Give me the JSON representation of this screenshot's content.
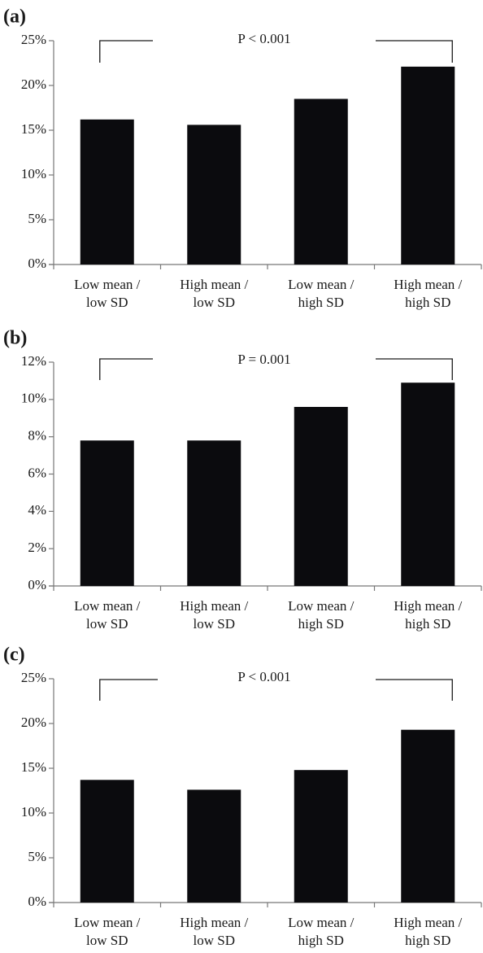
{
  "chart_data": [
    {
      "type": "bar",
      "panel_label": "(a)",
      "categories": [
        "Low mean / low SD",
        "High mean / low SD",
        "Low mean / high SD",
        "High mean / high SD"
      ],
      "category_lines": [
        [
          "Low mean /",
          "low SD"
        ],
        [
          "High mean /",
          "low SD"
        ],
        [
          "Low mean /",
          "high SD"
        ],
        [
          "High mean /",
          "high SD"
        ]
      ],
      "values": [
        0.162,
        0.156,
        0.185,
        0.221
      ],
      "ylim": [
        0,
        0.25
      ],
      "yticks": [
        0,
        0.05,
        0.1,
        0.15,
        0.2,
        0.25
      ],
      "ytick_labels": [
        "0%",
        "5%",
        "10%",
        "15%",
        "20%",
        "25%"
      ],
      "annotation": "P < 0.001",
      "bar_color": "#0b0b0e",
      "grid": false
    },
    {
      "type": "bar",
      "panel_label": "(b)",
      "categories": [
        "Low mean / low SD",
        "High mean / low SD",
        "Low mean / high SD",
        "High mean / high SD"
      ],
      "category_lines": [
        [
          "Low mean /",
          "low SD"
        ],
        [
          "High mean /",
          "low SD"
        ],
        [
          "Low mean /",
          "high SD"
        ],
        [
          "High mean /",
          "high SD"
        ]
      ],
      "values": [
        0.078,
        0.078,
        0.096,
        0.109
      ],
      "ylim": [
        0,
        0.12
      ],
      "yticks": [
        0,
        0.02,
        0.04,
        0.06,
        0.08,
        0.1,
        0.12
      ],
      "ytick_labels": [
        "0%",
        "2%",
        "4%",
        "6%",
        "8%",
        "10%",
        "12%"
      ],
      "annotation": "P = 0.001",
      "bar_color": "#0b0b0e",
      "grid": false
    },
    {
      "type": "bar",
      "panel_label": "(c)",
      "categories": [
        "Low mean / low SD",
        "High mean / low SD",
        "Low mean / high SD",
        "High mean / high SD"
      ],
      "category_lines": [
        [
          "Low mean /",
          "low SD"
        ],
        [
          "High mean /",
          "low SD"
        ],
        [
          "Low mean /",
          "high SD"
        ],
        [
          "High mean /",
          "high SD"
        ]
      ],
      "values": [
        0.137,
        0.126,
        0.148,
        0.193
      ],
      "ylim": [
        0,
        0.25
      ],
      "yticks": [
        0,
        0.05,
        0.1,
        0.15,
        0.2,
        0.25
      ],
      "ytick_labels": [
        "0%",
        "5%",
        "10%",
        "15%",
        "20%",
        "25%"
      ],
      "annotation": "P < 0.001",
      "bar_color": "#0b0b0e",
      "grid": false
    }
  ]
}
